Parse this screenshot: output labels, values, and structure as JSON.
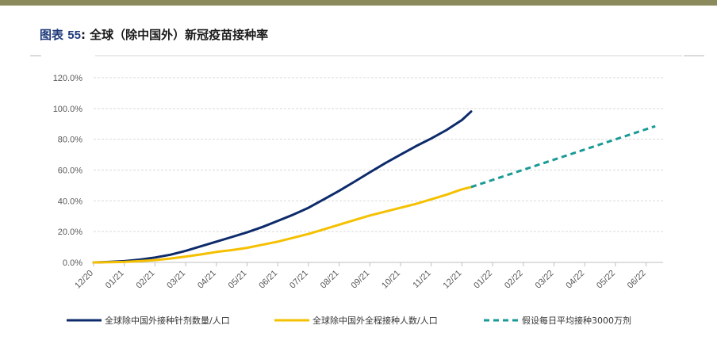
{
  "figure": {
    "label": "图表",
    "number": "55",
    "separator": ":",
    "title": "全球（除中国外）新冠疫苗接种率"
  },
  "colors": {
    "top_bar": "#8b8a5c",
    "series_doses": "#0d2b6b",
    "series_full": "#f5c000",
    "series_projection": "#1a9a96",
    "grid": "#d9d9d9"
  },
  "chart_data": {
    "type": "line",
    "title": "全球（除中国外）新冠疫苗接种率",
    "xlabel": "",
    "ylabel": "",
    "x_tick_labels": [
      "12/20",
      "01/21",
      "02/21",
      "03/21",
      "04/21",
      "05/21",
      "06/21",
      "07/21",
      "08/21",
      "09/21",
      "10/21",
      "11/21",
      "12/21",
      "01/22",
      "02/22",
      "03/22",
      "04/22",
      "05/22",
      "06/22"
    ],
    "y_tick_labels": [
      "0.0%",
      "20.0%",
      "40.0%",
      "60.0%",
      "80.0%",
      "100.0%",
      "120.0%"
    ],
    "ylim": [
      0,
      120
    ],
    "xlim": [
      0,
      18.3
    ],
    "grid": true,
    "legend_position": "bottom",
    "series": [
      {
        "name": "全球除中国外接种针剂数量/人口",
        "style": "solid",
        "color": "#0d2b6b",
        "x": [
          0,
          0.5,
          1,
          1.5,
          2,
          2.5,
          3,
          3.5,
          4,
          4.5,
          5,
          5.5,
          6,
          6.5,
          7,
          7.5,
          8,
          8.5,
          9,
          9.5,
          10,
          10.5,
          11,
          11.5,
          12,
          12.3
        ],
        "values": [
          0,
          0.3,
          0.8,
          1.8,
          3.2,
          5,
          7.5,
          10.5,
          13.5,
          16.5,
          19.5,
          23,
          27,
          31,
          35.5,
          41,
          46.5,
          52.5,
          58.5,
          64.5,
          70,
          75.5,
          80.5,
          86,
          92.5,
          98
        ]
      },
      {
        "name": "全球除中国外全程接种人数/人口",
        "style": "solid",
        "color": "#f5c000",
        "x": [
          0,
          0.5,
          1,
          1.5,
          2,
          2.5,
          3,
          3.5,
          4,
          4.5,
          5,
          5.5,
          6,
          6.5,
          7,
          7.5,
          8,
          8.5,
          9,
          9.5,
          10,
          10.5,
          11,
          11.5,
          12,
          12.3
        ],
        "values": [
          0,
          0.1,
          0.3,
          0.8,
          1.5,
          2.5,
          3.8,
          5.2,
          6.8,
          8,
          9.5,
          11.5,
          13.5,
          16,
          18.5,
          21.5,
          24.5,
          27.5,
          30.5,
          33,
          35.5,
          38,
          41,
          44,
          47.5,
          49
        ]
      },
      {
        "name": "假设每日平均接种3000万剂",
        "style": "dashed",
        "color": "#1a9a96",
        "x": [
          12.3,
          18.3
        ],
        "values": [
          49,
          88.5
        ]
      }
    ]
  }
}
